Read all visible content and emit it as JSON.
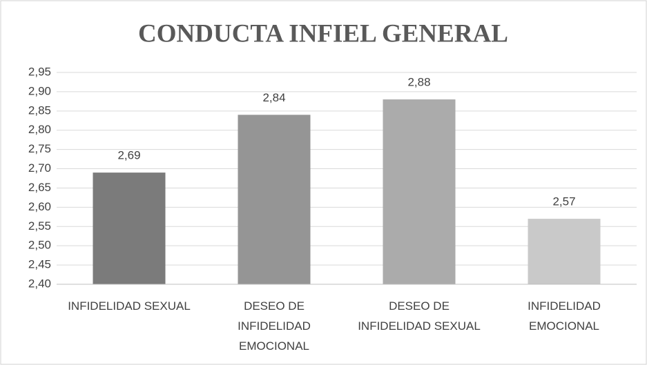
{
  "chart_data": {
    "type": "bar",
    "title": "CONDUCTA INFIEL GENERAL",
    "categories": [
      "INFIDELIDAD SEXUAL",
      "DESEO DE INFIDELIDAD EMOCIONAL",
      "DESEO DE INFIDELIDAD SEXUAL",
      "INFIDELIDAD EMOCIONAL"
    ],
    "values": [
      2.69,
      2.84,
      2.88,
      2.57
    ],
    "value_labels": [
      "2,69",
      "2,84",
      "2,88",
      "2,57"
    ],
    "colors": [
      "#7b7b7b",
      "#959595",
      "#ababab",
      "#c9c9c9"
    ],
    "ylim": [
      2.4,
      2.95
    ],
    "yticks": [
      {
        "value": 2.4,
        "label": "2,40"
      },
      {
        "value": 2.45,
        "label": "2,45"
      },
      {
        "value": 2.5,
        "label": "2,50"
      },
      {
        "value": 2.55,
        "label": "2,55"
      },
      {
        "value": 2.6,
        "label": "2,60"
      },
      {
        "value": 2.65,
        "label": "2,65"
      },
      {
        "value": 2.7,
        "label": "2,70"
      },
      {
        "value": 2.75,
        "label": "2,75"
      },
      {
        "value": 2.8,
        "label": "2,80"
      },
      {
        "value": 2.85,
        "label": "2,85"
      },
      {
        "value": 2.9,
        "label": "2,90"
      },
      {
        "value": 2.95,
        "label": "2,95"
      }
    ],
    "grid": true
  }
}
